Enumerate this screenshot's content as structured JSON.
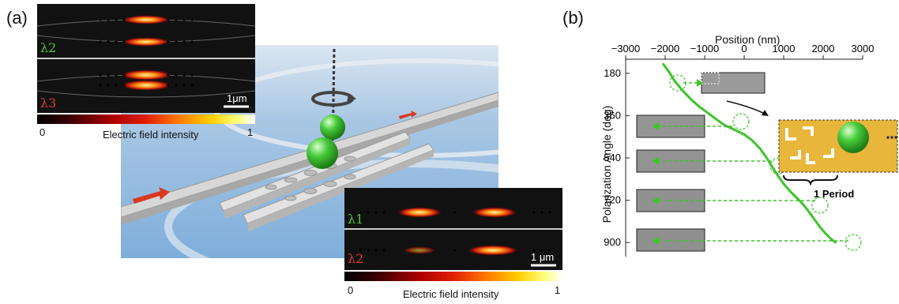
{
  "panel_a": {
    "label": "(a)",
    "inset_top": {
      "lambda_first": "λ2",
      "lambda_second": "λ3",
      "scalebar": "1μm",
      "colorbar_min": "0",
      "colorbar_max": "1",
      "colorbar_label": "Electric field intensity"
    },
    "inset_bottom": {
      "lambda_first": "λ1",
      "lambda_second": "λ2",
      "scalebar": "1 μm",
      "colorbar_min": "0",
      "colorbar_max": "1",
      "colorbar_label": "Electric field intensity"
    },
    "colors": {
      "lambda_green": "#4fc43a",
      "lambda_red": "#e23b2a",
      "sphere": "#47c93a",
      "arrow": "#d9391f"
    }
  },
  "panel_b": {
    "label": "(b)",
    "chart_data": {
      "type": "line",
      "xlabel": "Position (nm)",
      "ylabel": "Polarization Angle (deg)",
      "xlim": [
        -3000,
        3000
      ],
      "ylim": [
        120,
        960
      ],
      "x_ticks": [
        -3000,
        -2000,
        -1000,
        0,
        1000,
        2000,
        3000
      ],
      "x_tick_labels": [
        "−3000",
        "−2000",
        "−1000",
        "0",
        "1000",
        "2000",
        "3000"
      ],
      "y_ticks": [
        180,
        360,
        540,
        720,
        900
      ],
      "y_tick_labels": [
        "180",
        "360",
        "540",
        "720",
        "900"
      ],
      "y_inverted": true,
      "x_axis_position": "top",
      "series": [
        {
          "color": "#3ec42a",
          "x": [
            -2050,
            -1900,
            -1750,
            -1550,
            -1350,
            -1150,
            -950,
            -750,
            -500,
            -250,
            0,
            200,
            400,
            550,
            700,
            850,
            1000,
            1150,
            1300,
            1450,
            1600,
            1750,
            1900,
            2050,
            2200,
            2320
          ],
          "y": [
            140,
            175,
            215,
            255,
            290,
            320,
            345,
            370,
            400,
            420,
            440,
            465,
            500,
            535,
            575,
            615,
            650,
            680,
            705,
            730,
            760,
            795,
            830,
            860,
            885,
            900
          ]
        }
      ],
      "annotation": "1 Period"
    }
  }
}
